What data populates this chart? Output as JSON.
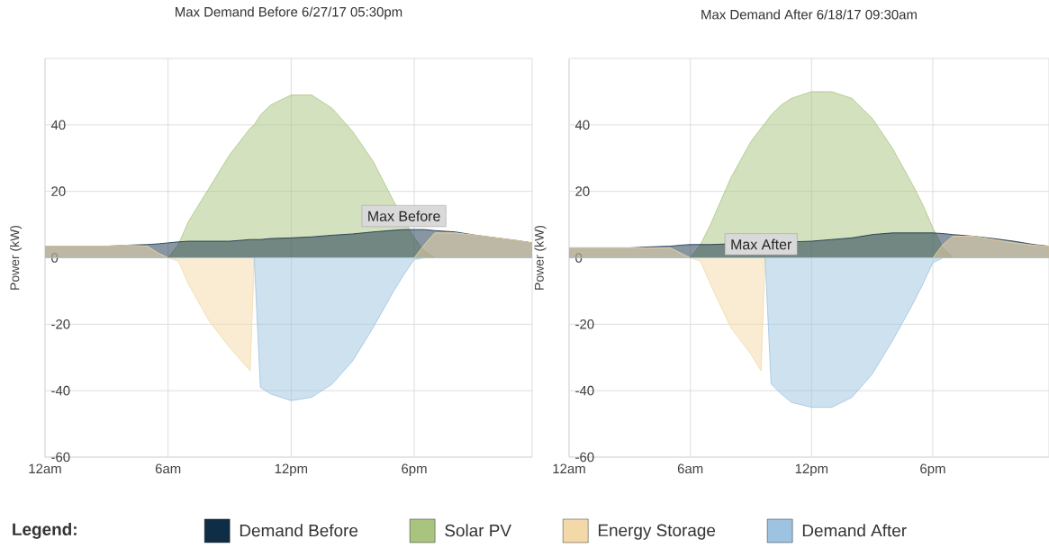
{
  "chart_data": [
    {
      "type": "area",
      "title": "Max Demand Before 6/27/17 05:30pm",
      "ylabel": "Power (kW)",
      "x": [
        "--06-27T00:00",
        "--06-27T01:00",
        "--06-27T02:00",
        "--06-27T03:00",
        "--06-27T04:00",
        "--06-27T05:00",
        "--06-27T05:30",
        "--06-27T06:00",
        "--06-27T06:30",
        "--06-27T07:00",
        "--06-27T08:00",
        "--06-27T09:00",
        "--06-27T10:00",
        "--06-27T10:12",
        "--06-27T10:30",
        "--06-27T11:00",
        "--06-27T12:00",
        "--06-27T13:00",
        "--06-27T14:00",
        "--06-27T15:00",
        "--06-27T16:00",
        "--06-27T17:00",
        "--06-27T17:30",
        "--06-27T18:00",
        "--06-27T18:30",
        "--06-27T19:00",
        "--06-27T20:00",
        "--06-27T21:00",
        "--06-27T22:00",
        "--06-27T23:00",
        "--06-27T23:45"
      ],
      "series": [
        {
          "name": "Demand Before",
          "color": "#0f2d45",
          "values": [
            3.5,
            3.5,
            3.5,
            3.5,
            3.8,
            4,
            4.2,
            4.5,
            4.8,
            5,
            5,
            5,
            5.5,
            5.5,
            5.5,
            5.8,
            6,
            6.3,
            6.8,
            7.2,
            7.8,
            8.3,
            8.5,
            8.5,
            8.5,
            8.2,
            7.8,
            6.8,
            6,
            5.2,
            4.5
          ]
        },
        {
          "name": "Solar PV",
          "color": "#a9c47f",
          "values": [
            0,
            0,
            0,
            0,
            0,
            0,
            0,
            0,
            4,
            11,
            21,
            31,
            39,
            40,
            43,
            46,
            49,
            49,
            45,
            38,
            29,
            17,
            null,
            6,
            2,
            0,
            0,
            0,
            0,
            0,
            0
          ]
        },
        {
          "name": "Energy Storage",
          "color": "#f3d9a8",
          "values": [
            3.5,
            3.5,
            3.5,
            3.5,
            3.8,
            3.5,
            1.5,
            0,
            -1,
            -8,
            -19,
            -27,
            -34,
            0,
            0,
            0,
            0,
            0,
            0,
            0,
            0,
            0,
            0,
            0,
            4,
            7.5,
            7.5,
            6.8,
            6,
            5.2,
            4.5
          ]
        },
        {
          "name": "Demand After",
          "color": "#9ec3e0",
          "values": [
            0,
            0,
            0,
            0,
            0,
            0,
            0,
            0,
            0,
            0,
            0,
            0,
            0,
            0,
            -39,
            -41,
            -43,
            -42,
            -38,
            -31,
            -21,
            -10,
            -5,
            -0.5,
            0,
            0,
            0,
            0,
            0,
            0,
            0
          ]
        }
      ],
      "xlim": [
        "--06-27T00:00",
        "--06-27T23:45"
      ],
      "ylim": [
        -60,
        60
      ],
      "xticks": [
        {
          "value": "--06-27T00:00",
          "label": "12am"
        },
        {
          "value": "--06-27T06:00",
          "label": "6am"
        },
        {
          "value": "--06-27T12:00",
          "label": "12pm"
        },
        {
          "value": "--06-27T18:00",
          "label": "6pm"
        }
      ],
      "yticks": [
        -60,
        -40,
        -20,
        0,
        20,
        40
      ],
      "grid": true,
      "legend": "bottom",
      "legend_title": "Legend:",
      "annotations": [
        {
          "text": "Max Before",
          "x": "--06-27T17:30",
          "y": 8.5
        }
      ]
    },
    {
      "type": "area",
      "title": "Max Demand After 6/18/17 09:30am",
      "ylabel": "Power (kW)",
      "x": [
        "--06-18T00:00",
        "--06-18T01:00",
        "--06-18T02:00",
        "--06-18T03:00",
        "--06-18T04:00",
        "--06-18T05:00",
        "--06-18T05:30",
        "--06-18T06:00",
        "--06-18T06:30",
        "--06-18T07:00",
        "--06-18T08:00",
        "--06-18T09:00",
        "--06-18T09:30",
        "--06-18T09:42",
        "--06-18T10:00",
        "--06-18T10:30",
        "--06-18T11:00",
        "--06-18T12:00",
        "--06-18T13:00",
        "--06-18T14:00",
        "--06-18T15:00",
        "--06-18T16:00",
        "--06-18T17:00",
        "--06-18T17:30",
        "--06-18T18:00",
        "--06-18T18:30",
        "--06-18T19:00",
        "--06-18T20:00",
        "--06-18T21:00",
        "--06-18T22:00",
        "--06-18T23:00",
        "--06-18T23:45"
      ],
      "series": [
        {
          "color": "#0f2d45",
          "values": [
            3,
            3,
            3,
            3,
            3.3,
            3.5,
            3.8,
            4,
            4,
            4,
            null,
            null,
            null,
            null,
            null,
            null,
            null,
            5,
            5.5,
            6,
            7,
            7.5,
            7.5,
            7.5,
            7.5,
            7.3,
            7,
            6.5,
            5.8,
            5,
            4,
            3.5
          ]
        },
        {
          "color": "#a9c47f",
          "values": [
            0,
            0,
            0,
            0,
            0,
            0,
            0,
            0,
            4,
            10,
            24,
            35,
            39,
            40.5,
            43,
            46,
            48,
            50,
            50,
            48,
            42,
            33,
            22,
            16,
            9,
            3,
            0,
            0,
            0,
            0,
            0,
            0
          ]
        },
        {
          "color": "#f3d9a8",
          "values": [
            3,
            3,
            3,
            3,
            3,
            3,
            1.5,
            0,
            -1,
            -8,
            -21,
            -29,
            -34,
            0,
            0,
            0,
            0,
            0,
            0,
            0,
            0,
            0,
            0,
            0,
            0,
            4,
            6.5,
            6.5,
            5.5,
            4.5,
            3.8,
            3.5
          ]
        },
        {
          "color": "#9ec3e0",
          "values": [
            0,
            0,
            0,
            0,
            0,
            0,
            0,
            0,
            0,
            0,
            0,
            0,
            0,
            0,
            -38,
            -41,
            -43.5,
            -45,
            -45,
            -42,
            -35,
            -25,
            -14,
            -8,
            -1.5,
            0,
            0,
            0,
            0,
            0,
            0,
            0
          ]
        }
      ],
      "xlim": [
        "--06-18T00:00",
        "--06-18T23:45"
      ],
      "ylim": [
        -60,
        60
      ],
      "xticks": [
        {
          "value": "--06-18T00:00",
          "label": "12am"
        },
        {
          "value": "--06-18T06:00",
          "label": "6am"
        },
        {
          "value": "--06-18T12:00",
          "label": "12pm"
        },
        {
          "value": "--06-18T18:00",
          "label": "6pm"
        }
      ],
      "yticks": [
        -60,
        -40,
        -20,
        0,
        20,
        40
      ],
      "grid": true,
      "legend": false,
      "annotations": [
        {
          "text": "Max After",
          "x": "--06-18T09:30",
          "y": 0
        }
      ]
    }
  ]
}
